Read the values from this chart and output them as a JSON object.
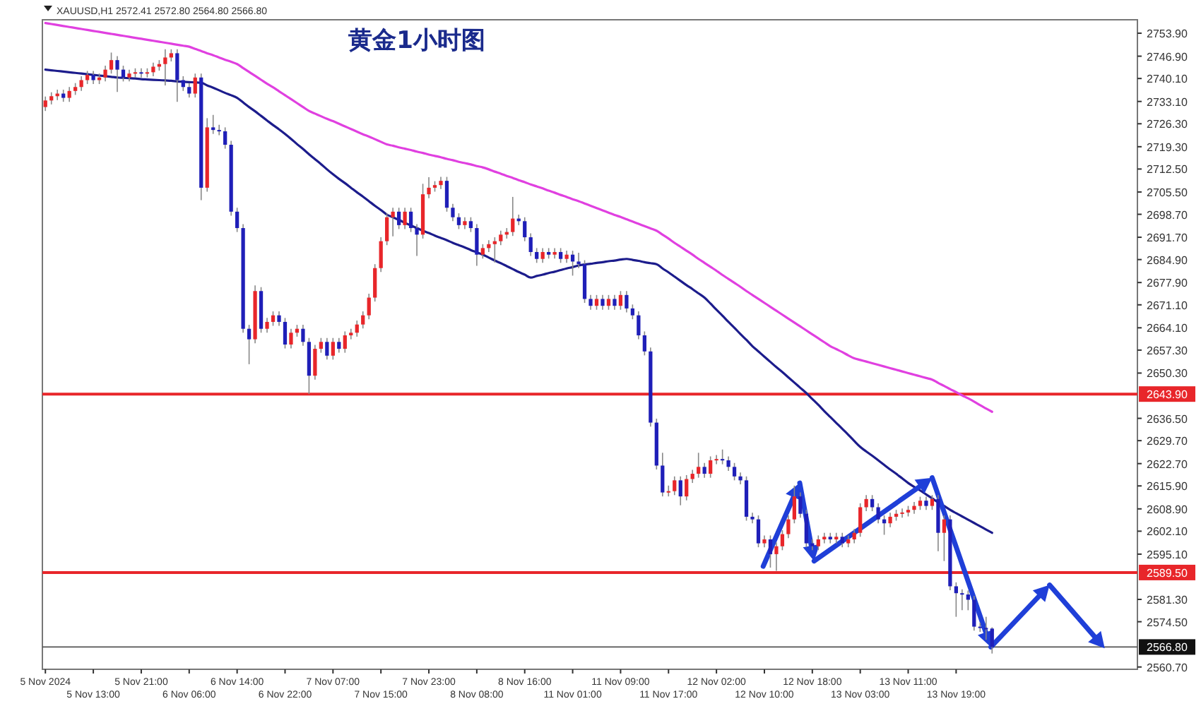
{
  "chart_data": {
    "type": "candlestick",
    "title": "黄金1小时图",
    "annotations": [
      "XAUUSD,H1 2572.41 2572.80 2564.80 2566.80"
    ],
    "colors": [
      "#e8262a",
      "#e8262a",
      "#e8262a",
      "#1f1fb8",
      "#e8262a",
      "#e8262a",
      "#e8262a",
      "#e8262a",
      "#1f1fb8",
      "#e8262a",
      "#e8262a",
      "#e8262a",
      "#1f1fb8",
      "#1f1fb8",
      "#e8262a",
      "#e8262a",
      "#1f1fb8",
      "#e8262a",
      "#e8262a",
      "#e8262a",
      "#e8262a",
      "#e8262a",
      "#1f1fb8",
      "#1f1fb8",
      "#1f1fb8",
      "#e8262a",
      "#1f1fb8",
      "#e8262a",
      "#1f1fb8",
      "#1f1fb8",
      "#1f1fb8",
      "#1f1fb8",
      "#1f1fb8",
      "#1f1fb8",
      "#1f1fb8",
      "#e8262a",
      "#1f1fb8",
      "#e8262a",
      "#e8262a",
      "#1f1fb8",
      "#1f1fb8",
      "#e8262a",
      "#e8262a",
      "#1f1fb8",
      "#1f1fb8",
      "#e8262a",
      "#e8262a",
      "#1f1fb8",
      "#e8262a",
      "#1f1fb8",
      "#e8262a",
      "#e8262a",
      "#e8262a",
      "#e8262a",
      "#e8262a",
      "#e8262a",
      "#e8262a",
      "#e8262a",
      "#e8262a",
      "#1f1fb8",
      "#e8262a",
      "#1f1fb8",
      "#1f1fb8",
      "#e8262a",
      "#e8262a",
      "#e8262a",
      "#e8262a",
      "#1f1fb8",
      "#1f1fb8",
      "#1f1fb8",
      "#e8262a",
      "#1f1fb8",
      "#1f1fb8",
      "#e8262a",
      "#e8262a",
      "#e8262a",
      "#e8262a",
      "#e8262a",
      "#e8262a",
      "#1f1fb8",
      "#1f1fb8",
      "#1f1fb8",
      "#1f1fb8",
      "#e8262a",
      "#1f1fb8",
      "#e8262a",
      "#1f1fb8",
      "#e8262a",
      "#1f1fb8",
      "#1f1fb8",
      "#1f1fb8",
      "#1f1fb8",
      "#e8262a",
      "#1f1fb8",
      "#e8262a",
      "#1f1fb8",
      "#e8262a",
      "#1f1fb8",
      "#1f1fb8",
      "#1f1fb8",
      "#1f1fb8",
      "#1f1fb8",
      "#1f1fb8",
      "#1f1fb8",
      "#e8262a",
      "#e8262a",
      "#1f1fb8",
      "#e8262a",
      "#e8262a",
      "#e8262a",
      "#1f1fb8",
      "#e8262a",
      "#e8262a",
      "#1f1fb8",
      "#1f1fb8",
      "#1f1fb8",
      "#1f1fb8",
      "#1f1fb8",
      "#1f1fb8",
      "#1f1fb8",
      "#e8262a",
      "#1f1fb8",
      "#e8262a",
      "#e8262a",
      "#e8262a",
      "#e8262a",
      "#1f1fb8",
      "#1f1fb8",
      "#1f1fb8",
      "#e8262a",
      "#e8262a",
      "#1f1fb8",
      "#e8262a",
      "#1f1fb8",
      "#e8262a",
      "#e8262a",
      "#e8262a",
      "#e8262a",
      "#1f1fb8",
      "#1f1fb8",
      "#1f1fb8",
      "#e8262a",
      "#e8262a",
      "#e8262a",
      "#e8262a",
      "#e8262a",
      "#e8262a",
      "#1f1fb8",
      "#e8262a",
      "#1f1fb8",
      "#e8262a",
      "#1f1fb8",
      "#1f1fb8",
      "#1f1fb8",
      "#1f1fb8",
      "#1f1fb8",
      "#1f1fb8",
      "#1f1fb8",
      "#1f1fb8"
    ],
    "categories": [
      "5 Nov 2024",
      null,
      null,
      null,
      null,
      null,
      null,
      null,
      "5 Nov 13:00",
      null,
      null,
      null,
      null,
      null,
      null,
      null,
      "5 Nov 21:00",
      null,
      null,
      null,
      null,
      null,
      null,
      null,
      "6 Nov 06:00",
      null,
      null,
      null,
      null,
      null,
      null,
      null,
      "6 Nov 14:00",
      null,
      null,
      null,
      null,
      null,
      null,
      null,
      "6 Nov 22:00",
      null,
      null,
      null,
      null,
      null,
      null,
      null,
      "7 Nov 07:00",
      null,
      null,
      null,
      null,
      null,
      null,
      null,
      "7 Nov 15:00",
      null,
      null,
      null,
      null,
      null,
      null,
      null,
      "7 Nov 23:00",
      null,
      null,
      null,
      null,
      null,
      null,
      null,
      "8 Nov 08:00",
      null,
      null,
      null,
      null,
      null,
      null,
      null,
      "8 Nov 16:00",
      null,
      null,
      null,
      null,
      null,
      null,
      null,
      "11 Nov 01:00",
      null,
      null,
      null,
      null,
      null,
      null,
      null,
      "11 Nov 09:00",
      null,
      null,
      null,
      null,
      null,
      null,
      null,
      "11 Nov 17:00",
      null,
      null,
      null,
      null,
      null,
      null,
      null,
      "12 Nov 02:00",
      null,
      null,
      null,
      null,
      null,
      null,
      null,
      "12 Nov 10:00",
      null,
      null,
      null,
      null,
      null,
      null,
      null,
      "12 Nov 18:00",
      null,
      null,
      null,
      null,
      null,
      null,
      null,
      "13 Nov 03:00",
      null,
      null,
      null,
      null,
      null,
      null,
      null,
      "13 Nov 11:00",
      null,
      null,
      null,
      null,
      null,
      null,
      null,
      "13 Nov 19:00",
      null,
      null,
      null,
      null,
      null,
      null
    ],
    "ylim": [
      2560,
      2758
    ],
    "yticks": [
      {
        "value": 2753.9,
        "label": "2753.90"
      },
      {
        "value": 2746.9,
        "label": "2746.90"
      },
      {
        "value": 2740.1,
        "label": "2740.10"
      },
      {
        "value": 2733.1,
        "label": "2733.10"
      },
      {
        "value": 2726.3,
        "label": "2726.30"
      },
      {
        "value": 2719.3,
        "label": "2719.30"
      },
      {
        "value": 2712.5,
        "label": "2712.50"
      },
      {
        "value": 2705.5,
        "label": "2705.50"
      },
      {
        "value": 2698.7,
        "label": "2698.70"
      },
      {
        "value": 2691.7,
        "label": "2691.70"
      },
      {
        "value": 2684.9,
        "label": "2684.90"
      },
      {
        "value": 2677.9,
        "label": "2677.90"
      },
      {
        "value": 2671.1,
        "label": "2671.10"
      },
      {
        "value": 2664.1,
        "label": "2664.10"
      },
      {
        "value": 2657.3,
        "label": "2657.30"
      },
      {
        "value": 2650.3,
        "label": "2650.30"
      },
      {
        "value": 2636.5,
        "label": "2636.50"
      },
      {
        "value": 2629.7,
        "label": "2629.70"
      },
      {
        "value": 2622.7,
        "label": "2622.70"
      },
      {
        "value": 2615.9,
        "label": "2615.90"
      },
      {
        "value": 2608.9,
        "label": "2608.90"
      },
      {
        "value": 2602.1,
        "label": "2602.10"
      },
      {
        "value": 2595.1,
        "label": "2595.10"
      },
      {
        "value": 2581.3,
        "label": "2581.30"
      },
      {
        "value": 2574.5,
        "label": "2574.50"
      },
      {
        "value": 2560.7,
        "label": "2560.70"
      }
    ],
    "ref_lines": [
      {
        "axis": "y",
        "value": 2643.9,
        "label": "2643.90",
        "color": "#e8262a"
      },
      {
        "axis": "y",
        "value": 2589.5,
        "label": "2589.50",
        "color": "#e8262a"
      },
      {
        "axis": "y",
        "value": 2566.8,
        "label": "2566.80",
        "color": "#555555"
      }
    ],
    "ohlc": [
      [
        2731.4,
        2734.6,
        2730.2,
        2733.4
      ],
      [
        2733.4,
        2735.9,
        2732.2,
        2734.7
      ],
      [
        2734.7,
        2736.7,
        2733.5,
        2735.5
      ],
      [
        2735.5,
        2736.7,
        2733.0,
        2734.2
      ],
      [
        2734.2,
        2737.5,
        2733.0,
        2736.3
      ],
      [
        2736.3,
        2738.7,
        2735.1,
        2737.5
      ],
      [
        2737.5,
        2740.8,
        2736.3,
        2739.6
      ],
      [
        2739.6,
        2742.4,
        2738.4,
        2741.2
      ],
      [
        2741.2,
        2742.4,
        2738.4,
        2739.6
      ],
      [
        2739.6,
        2741.6,
        2738.4,
        2740.4
      ],
      [
        2740.4,
        2744.0,
        2739.2,
        2742.8
      ],
      [
        2742.8,
        2748.0,
        2741.6,
        2745.7
      ],
      [
        2745.7,
        2746.9,
        2736.0,
        2742.8
      ],
      [
        2742.8,
        2744.0,
        2739.2,
        2740.4
      ],
      [
        2740.4,
        2742.8,
        2739.2,
        2741.6
      ],
      [
        2741.6,
        2743.2,
        2740.4,
        2742.0
      ],
      [
        2742.0,
        2743.2,
        2740.4,
        2741.6
      ],
      [
        2741.6,
        2743.2,
        2740.4,
        2742.0
      ],
      [
        2742.0,
        2744.9,
        2740.8,
        2743.7
      ],
      [
        2743.7,
        2745.7,
        2742.5,
        2744.5
      ],
      [
        2744.5,
        2749.0,
        2738.0,
        2746.5
      ],
      [
        2746.5,
        2749.0,
        2745.3,
        2747.8
      ],
      [
        2747.8,
        2749.0,
        2733.0,
        2739.6
      ],
      [
        2739.6,
        2740.8,
        2736.3,
        2737.5
      ],
      [
        2737.5,
        2738.7,
        2734.3,
        2735.5
      ],
      [
        2735.5,
        2741.6,
        2734.3,
        2740.4
      ],
      [
        2740.4,
        2741.6,
        2703.0,
        2706.8
      ],
      [
        2706.8,
        2728.0,
        2705.6,
        2725.2
      ],
      [
        2725.2,
        2729.0,
        2723.2,
        2724.4
      ],
      [
        2724.4,
        2726.0,
        2722.8,
        2724.0
      ],
      [
        2724.0,
        2725.2,
        2718.7,
        2719.9
      ],
      [
        2719.9,
        2721.1,
        2698.3,
        2699.5
      ],
      [
        2699.5,
        2700.7,
        2693.3,
        2694.5
      ],
      [
        2694.5,
        2695.7,
        2662.6,
        2663.8
      ],
      [
        2663.8,
        2665.0,
        2653.0,
        2660.6
      ],
      [
        2660.6,
        2677.0,
        2659.4,
        2675.3
      ],
      [
        2675.3,
        2676.5,
        2662.6,
        2663.8
      ],
      [
        2663.8,
        2667.1,
        2662.6,
        2665.9
      ],
      [
        2665.9,
        2669.1,
        2664.7,
        2667.9
      ],
      [
        2667.9,
        2669.1,
        2664.7,
        2665.9
      ],
      [
        2665.9,
        2667.1,
        2657.8,
        2659.0
      ],
      [
        2659.0,
        2663.8,
        2657.8,
        2662.6
      ],
      [
        2662.6,
        2665.0,
        2661.4,
        2663.8
      ],
      [
        2663.8,
        2665.0,
        2658.6,
        2659.8
      ],
      [
        2659.8,
        2661.0,
        2643.9,
        2649.5
      ],
      [
        2649.5,
        2658.9,
        2648.3,
        2657.7
      ],
      [
        2657.7,
        2661.0,
        2656.5,
        2659.8
      ],
      [
        2659.8,
        2661.0,
        2654.4,
        2655.6
      ],
      [
        2655.6,
        2661.0,
        2654.4,
        2659.8
      ],
      [
        2659.8,
        2661.0,
        2656.5,
        2657.7
      ],
      [
        2657.7,
        2663.0,
        2656.5,
        2661.8
      ],
      [
        2661.8,
        2663.8,
        2660.6,
        2662.6
      ],
      [
        2662.6,
        2666.3,
        2661.4,
        2665.1
      ],
      [
        2665.1,
        2669.1,
        2663.9,
        2667.9
      ],
      [
        2667.9,
        2674.5,
        2666.7,
        2673.3
      ],
      [
        2673.3,
        2683.5,
        2672.1,
        2682.3
      ],
      [
        2682.3,
        2691.7,
        2681.1,
        2690.5
      ],
      [
        2690.5,
        2699.0,
        2689.3,
        2697.8
      ],
      [
        2697.8,
        2700.7,
        2692.0,
        2699.5
      ],
      [
        2699.5,
        2700.7,
        2694.2,
        2695.4
      ],
      [
        2695.4,
        2700.7,
        2694.2,
        2699.5
      ],
      [
        2699.5,
        2700.7,
        2693.3,
        2694.5
      ],
      [
        2694.5,
        2695.7,
        2686.0,
        2692.5
      ],
      [
        2692.5,
        2708.0,
        2691.3,
        2704.8
      ],
      [
        2704.8,
        2710.0,
        2703.6,
        2706.8
      ],
      [
        2706.8,
        2708.8,
        2705.6,
        2707.6
      ],
      [
        2707.6,
        2710.1,
        2706.4,
        2708.9
      ],
      [
        2708.9,
        2710.1,
        2699.5,
        2700.7
      ],
      [
        2700.7,
        2701.9,
        2696.6,
        2697.8
      ],
      [
        2697.8,
        2699.0,
        2694.2,
        2695.4
      ],
      [
        2695.4,
        2697.8,
        2694.2,
        2696.6
      ],
      [
        2696.6,
        2697.8,
        2693.3,
        2694.5
      ],
      [
        2694.5,
        2695.7,
        2683.0,
        2686.4
      ],
      [
        2686.4,
        2689.6,
        2685.2,
        2688.4
      ],
      [
        2688.4,
        2690.8,
        2687.2,
        2689.6
      ],
      [
        2689.6,
        2691.7,
        2684.0,
        2690.5
      ],
      [
        2690.5,
        2693.7,
        2689.3,
        2692.5
      ],
      [
        2692.5,
        2694.5,
        2691.3,
        2693.3
      ],
      [
        2693.3,
        2704.0,
        2692.1,
        2697.4
      ],
      [
        2697.4,
        2698.6,
        2695.4,
        2696.6
      ],
      [
        2696.6,
        2697.8,
        2690.5,
        2691.7
      ],
      [
        2691.7,
        2692.9,
        2686.0,
        2687.2
      ],
      [
        2687.2,
        2688.4,
        2683.9,
        2685.1
      ],
      [
        2685.1,
        2688.4,
        2683.9,
        2687.2
      ],
      [
        2687.2,
        2688.4,
        2685.2,
        2686.4
      ],
      [
        2686.4,
        2688.4,
        2685.2,
        2687.2
      ],
      [
        2687.2,
        2688.4,
        2683.9,
        2685.1
      ],
      [
        2685.1,
        2687.6,
        2683.9,
        2686.4
      ],
      [
        2686.4,
        2687.6,
        2680.0,
        2684.3
      ],
      [
        2684.3,
        2687.0,
        2682.3,
        2683.5
      ],
      [
        2683.5,
        2684.7,
        2671.7,
        2672.9
      ],
      [
        2672.9,
        2674.1,
        2669.6,
        2670.8
      ],
      [
        2670.8,
        2674.1,
        2669.6,
        2672.9
      ],
      [
        2672.9,
        2674.1,
        2669.6,
        2670.8
      ],
      [
        2670.8,
        2674.1,
        2669.6,
        2672.9
      ],
      [
        2672.9,
        2674.1,
        2669.6,
        2670.8
      ],
      [
        2670.8,
        2675.3,
        2669.6,
        2674.1
      ],
      [
        2674.1,
        2675.3,
        2668.8,
        2670.0
      ],
      [
        2670.0,
        2671.2,
        2666.7,
        2667.9
      ],
      [
        2667.9,
        2669.1,
        2660.6,
        2661.8
      ],
      [
        2661.8,
        2663.0,
        2655.7,
        2656.9
      ],
      [
        2656.9,
        2658.1,
        2634.0,
        2635.2
      ],
      [
        2635.2,
        2636.4,
        2620.9,
        2622.1
      ],
      [
        2622.1,
        2626.0,
        2612.7,
        2613.9
      ],
      [
        2613.9,
        2616.0,
        2612.7,
        2614.3
      ],
      [
        2614.3,
        2618.8,
        2613.1,
        2617.6
      ],
      [
        2617.6,
        2618.8,
        2610.0,
        2612.7
      ],
      [
        2612.7,
        2619.2,
        2611.5,
        2618.0
      ],
      [
        2618.0,
        2620.8,
        2616.8,
        2619.6
      ],
      [
        2619.6,
        2626.0,
        2618.4,
        2621.7
      ],
      [
        2621.7,
        2622.9,
        2618.4,
        2619.6
      ],
      [
        2619.6,
        2624.9,
        2618.4,
        2623.7
      ],
      [
        2623.7,
        2625.3,
        2622.5,
        2624.1
      ],
      [
        2624.1,
        2627.0,
        2622.5,
        2623.7
      ],
      [
        2623.7,
        2624.9,
        2620.5,
        2621.7
      ],
      [
        2621.7,
        2622.9,
        2617.6,
        2618.8
      ],
      [
        2618.8,
        2620.0,
        2616.4,
        2617.6
      ],
      [
        2617.6,
        2618.8,
        2605.3,
        2606.5
      ],
      [
        2606.5,
        2607.7,
        2604.5,
        2605.7
      ],
      [
        2605.7,
        2606.9,
        2597.2,
        2598.4
      ],
      [
        2598.4,
        2600.8,
        2597.2,
        2599.6
      ],
      [
        2599.6,
        2600.8,
        2591.0,
        2595.1
      ],
      [
        2595.1,
        2598.7,
        2590.0,
        2597.5
      ],
      [
        2597.5,
        2602.4,
        2596.3,
        2601.2
      ],
      [
        2601.2,
        2606.9,
        2600.0,
        2605.7
      ],
      [
        2605.7,
        2616.0,
        2604.5,
        2612.7
      ],
      [
        2612.7,
        2613.9,
        2606.2,
        2607.4
      ],
      [
        2607.4,
        2608.6,
        2597.2,
        2598.4
      ],
      [
        2598.4,
        2599.6,
        2596.3,
        2597.5
      ],
      [
        2597.5,
        2600.8,
        2596.3,
        2599.6
      ],
      [
        2599.6,
        2601.6,
        2598.4,
        2600.4
      ],
      [
        2600.4,
        2601.6,
        2598.4,
        2599.6
      ],
      [
        2599.6,
        2601.6,
        2598.4,
        2600.4
      ],
      [
        2600.4,
        2601.6,
        2597.2,
        2598.4
      ],
      [
        2598.4,
        2600.8,
        2597.2,
        2599.6
      ],
      [
        2599.6,
        2602.8,
        2598.4,
        2601.6
      ],
      [
        2601.6,
        2610.6,
        2600.4,
        2609.4
      ],
      [
        2609.4,
        2613.1,
        2608.2,
        2611.9
      ],
      [
        2611.9,
        2613.1,
        2608.2,
        2609.4
      ],
      [
        2609.4,
        2610.6,
        2604.5,
        2605.7
      ],
      [
        2605.7,
        2606.9,
        2601.0,
        2604.5
      ],
      [
        2604.5,
        2607.7,
        2603.3,
        2606.5
      ],
      [
        2606.5,
        2608.6,
        2605.3,
        2607.4
      ],
      [
        2607.4,
        2609.0,
        2606.2,
        2607.8
      ],
      [
        2607.8,
        2609.8,
        2606.6,
        2608.6
      ],
      [
        2608.6,
        2611.0,
        2607.4,
        2609.8
      ],
      [
        2609.8,
        2612.6,
        2608.6,
        2611.4
      ],
      [
        2611.4,
        2612.6,
        2608.6,
        2609.8
      ],
      [
        2609.8,
        2613.1,
        2608.6,
        2611.9
      ],
      [
        2611.9,
        2613.1,
        2596.0,
        2601.6
      ],
      [
        2601.6,
        2606.9,
        2593.0,
        2605.7
      ],
      [
        2605.7,
        2606.9,
        2584.1,
        2585.3
      ],
      [
        2585.3,
        2586.5,
        2576.0,
        2583.2
      ],
      [
        2583.2,
        2584.4,
        2578.0,
        2582.8
      ],
      [
        2582.8,
        2584.0,
        2578.0,
        2581.2
      ],
      [
        2581.2,
        2582.4,
        2571.8,
        2573.0
      ],
      [
        2573.0,
        2574.2,
        2571.4,
        2572.6
      ],
      [
        2572.6,
        2576.0,
        2569.0,
        2572.4
      ],
      [
        2572.41,
        2572.8,
        2564.8,
        2566.8
      ]
    ],
    "series": [
      {
        "type": "line",
        "color": "#1c1c8c",
        "values": [
          2742.8,
          2742.6,
          2742.4,
          2742.2,
          2742.0,
          2741.8,
          2741.6,
          2741.4,
          2741.2,
          2741.0,
          2740.8,
          2740.6,
          2740.4,
          2740.3,
          2740.2,
          2740.1,
          2739.9,
          2739.8,
          2739.7,
          2739.6,
          2739.5,
          2739.4,
          2739.2,
          2739.1,
          2739.0,
          2738.9,
          2738.8,
          2738.0,
          2737.3,
          2736.5,
          2735.7,
          2735.0,
          2734.2,
          2732.8,
          2731.4,
          2730.1,
          2728.7,
          2727.3,
          2725.9,
          2724.6,
          2723.2,
          2721.7,
          2720.1,
          2718.6,
          2717.0,
          2715.5,
          2714.0,
          2712.4,
          2710.9,
          2709.5,
          2708.2,
          2706.8,
          2705.4,
          2704.1,
          2702.7,
          2701.3,
          2700.0,
          2698.6,
          2697.8,
          2697.0,
          2696.1,
          2695.3,
          2694.5,
          2693.7,
          2693.0,
          2692.2,
          2691.5,
          2690.8,
          2690.0,
          2689.3,
          2688.6,
          2687.8,
          2687.1,
          2686.4,
          2685.5,
          2684.6,
          2683.8,
          2682.9,
          2682.0,
          2681.1,
          2680.3,
          2679.4,
          2679.9,
          2680.3,
          2680.8,
          2681.2,
          2681.7,
          2682.2,
          2682.6,
          2683.1,
          2683.4,
          2683.6,
          2683.9,
          2684.1,
          2684.4,
          2684.6,
          2684.9,
          2685.1,
          2684.8,
          2684.5,
          2684.1,
          2683.8,
          2683.5,
          2682.2,
          2681.0,
          2679.7,
          2678.4,
          2677.1,
          2675.9,
          2674.6,
          2673.3,
          2671.5,
          2669.6,
          2667.8,
          2665.9,
          2664.1,
          2662.2,
          2660.4,
          2658.5,
          2656.9,
          2655.3,
          2653.7,
          2652.1,
          2650.6,
          2649.0,
          2647.4,
          2645.8,
          2644.2,
          2642.4,
          2640.6,
          2638.7,
          2636.9,
          2635.1,
          2633.3,
          2631.5,
          2629.6,
          2627.8,
          2626.4,
          2625.1,
          2623.7,
          2622.3,
          2620.9,
          2619.6,
          2618.2,
          2616.8,
          2615.6,
          2614.5,
          2613.3,
          2612.1,
          2610.9,
          2609.8,
          2608.6,
          2607.6,
          2606.6,
          2605.6,
          2604.6,
          2603.6,
          2602.6,
          2601.6
        ]
      },
      {
        "type": "line",
        "color": "#e040e0",
        "values": [
          2757.0,
          2756.7,
          2756.4,
          2756.1,
          2755.8,
          2755.5,
          2755.2,
          2754.9,
          2754.6,
          2754.3,
          2754.0,
          2753.7,
          2753.4,
          2753.1,
          2752.8,
          2752.5,
          2752.2,
          2751.9,
          2751.6,
          2751.3,
          2751.0,
          2750.7,
          2750.4,
          2750.1,
          2749.8,
          2749.1,
          2748.5,
          2747.8,
          2747.2,
          2746.5,
          2745.8,
          2745.2,
          2744.5,
          2743.3,
          2742.1,
          2740.9,
          2739.7,
          2738.5,
          2737.4,
          2736.2,
          2735.0,
          2733.8,
          2732.6,
          2731.4,
          2730.2,
          2729.4,
          2728.6,
          2727.8,
          2727.1,
          2726.3,
          2725.5,
          2724.7,
          2723.9,
          2723.1,
          2722.4,
          2721.6,
          2720.8,
          2720.0,
          2719.6,
          2719.1,
          2718.7,
          2718.3,
          2717.8,
          2717.4,
          2716.9,
          2716.5,
          2716.1,
          2715.6,
          2715.2,
          2714.7,
          2714.3,
          2713.9,
          2713.4,
          2713.0,
          2712.4,
          2711.7,
          2711.1,
          2710.4,
          2709.8,
          2709.1,
          2708.5,
          2707.8,
          2707.2,
          2706.6,
          2705.9,
          2705.3,
          2704.6,
          2704.0,
          2703.3,
          2702.7,
          2702.0,
          2701.3,
          2700.6,
          2699.9,
          2699.2,
          2698.5,
          2697.9,
          2697.2,
          2696.5,
          2695.8,
          2695.1,
          2694.4,
          2693.7,
          2692.5,
          2691.3,
          2690.0,
          2688.8,
          2687.6,
          2686.4,
          2685.1,
          2683.9,
          2682.7,
          2681.5,
          2680.2,
          2679.0,
          2677.8,
          2676.6,
          2675.3,
          2674.1,
          2672.9,
          2671.7,
          2670.5,
          2669.3,
          2668.1,
          2666.9,
          2665.7,
          2664.5,
          2663.3,
          2662.1,
          2660.9,
          2659.7,
          2658.5,
          2657.6,
          2656.7,
          2655.7,
          2654.8,
          2654.3,
          2653.8,
          2653.3,
          2652.8,
          2652.3,
          2651.8,
          2651.3,
          2650.8,
          2650.3,
          2649.8,
          2649.3,
          2648.8,
          2648.3,
          2647.3,
          2646.4,
          2645.4,
          2644.5,
          2643.5,
          2642.6,
          2641.6,
          2640.5,
          2639.5,
          2638.5
        ]
      }
    ]
  }
}
